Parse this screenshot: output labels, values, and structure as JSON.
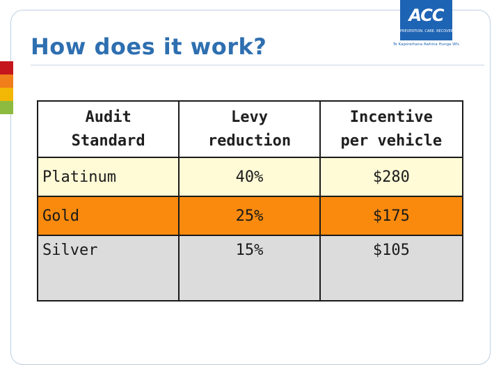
{
  "title": "How does it work?",
  "logo": {
    "mark": "ACC",
    "subtitle": "PREVENTION. CARE. RECOVERY.",
    "tagline": "Te Kaporeihana Awhina Hunga Whara",
    "color": "#1e64b4"
  },
  "side_bar_colors": [
    "#c4161c",
    "#f07e1b",
    "#f2b705",
    "#8dbb3f"
  ],
  "table": {
    "headers": [
      [
        "Audit",
        "Standard"
      ],
      [
        "Levy",
        "reduction"
      ],
      [
        "Incentive",
        "per vehicle"
      ]
    ],
    "rows": [
      {
        "standard": "Platinum",
        "levy_reduction": "40%",
        "incentive": "$280",
        "color": "#fffbd6"
      },
      {
        "standard": "Gold",
        "levy_reduction": "25%",
        "incentive": "$175",
        "color": "#f98a0e"
      },
      {
        "standard": "Silver",
        "levy_reduction": "15%",
        "incentive": "$105",
        "color": "#dcdcdc"
      }
    ]
  }
}
